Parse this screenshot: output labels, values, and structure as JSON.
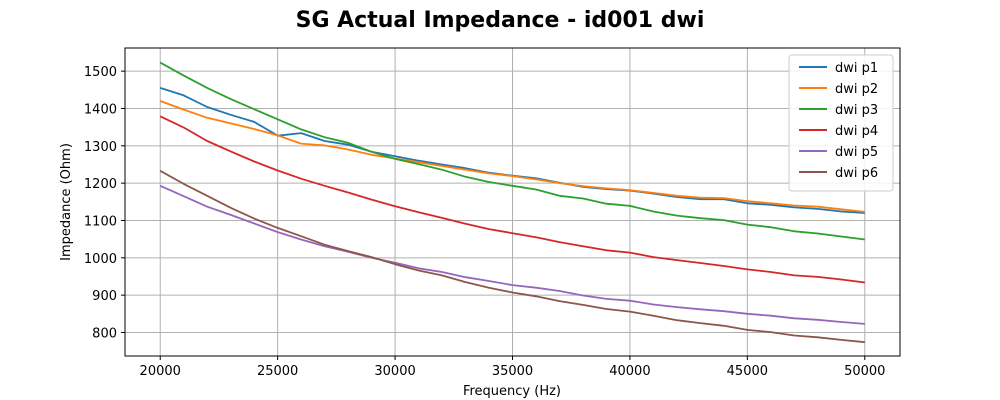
{
  "chart_data": {
    "type": "line",
    "title": "SG Actual Impedance - id001 dwi",
    "xlabel": "Frequency (Hz)",
    "ylabel": "Impedance (Ohm)",
    "xlim": [
      18500,
      51500
    ],
    "ylim": [
      737,
      1562
    ],
    "xticks": [
      20000,
      25000,
      30000,
      35000,
      40000,
      45000,
      50000
    ],
    "yticks": [
      800,
      900,
      1000,
      1100,
      1200,
      1300,
      1400,
      1500
    ],
    "grid": true,
    "legend_position": "top-right",
    "x": [
      20000,
      21000,
      22000,
      23000,
      24000,
      25000,
      26000,
      27000,
      28000,
      29000,
      30000,
      31000,
      32000,
      33000,
      34000,
      35000,
      36000,
      37000,
      38000,
      39000,
      40000,
      41000,
      42000,
      43000,
      44000,
      45000,
      46000,
      47000,
      48000,
      49000,
      50000
    ],
    "series": [
      {
        "name": "dwi p1",
        "color": "#1f77b4",
        "values": [
          1455,
          1435,
          1404,
          1383,
          1364,
          1327,
          1334,
          1313,
          1303,
          1284,
          1272,
          1260,
          1250,
          1240,
          1228,
          1220,
          1213,
          1201,
          1190,
          1184,
          1180,
          1172,
          1163,
          1157,
          1157,
          1146,
          1142,
          1135,
          1131,
          1124,
          1120
        ]
      },
      {
        "name": "dwi p2",
        "color": "#ff7f0e",
        "values": [
          1420,
          1397,
          1375,
          1360,
          1345,
          1328,
          1306,
          1301,
          1290,
          1276,
          1266,
          1256,
          1246,
          1236,
          1226,
          1219,
          1210,
          1200,
          1192,
          1186,
          1181,
          1174,
          1166,
          1161,
          1160,
          1152,
          1146,
          1140,
          1137,
          1130,
          1123
        ]
      },
      {
        "name": "dwi p3",
        "color": "#2ca02c",
        "values": [
          1523,
          1488,
          1455,
          1425,
          1398,
          1371,
          1344,
          1323,
          1308,
          1284,
          1265,
          1251,
          1236,
          1217,
          1203,
          1193,
          1183,
          1166,
          1159,
          1145,
          1139,
          1124,
          1113,
          1106,
          1101,
          1089,
          1082,
          1071,
          1065,
          1057,
          1049
        ]
      },
      {
        "name": "dwi p4",
        "color": "#d62728",
        "values": [
          1379,
          1349,
          1313,
          1285,
          1258,
          1234,
          1212,
          1193,
          1175,
          1156,
          1138,
          1122,
          1107,
          1091,
          1077,
          1066,
          1055,
          1042,
          1031,
          1020,
          1014,
          1002,
          994,
          986,
          978,
          969,
          962,
          953,
          949,
          942,
          934
        ]
      },
      {
        "name": "dwi p5",
        "color": "#9467bd",
        "values": [
          1193,
          1165,
          1137,
          1115,
          1092,
          1069,
          1049,
          1031,
          1016,
          1000,
          987,
          972,
          962,
          948,
          938,
          927,
          920,
          911,
          899,
          890,
          885,
          875,
          868,
          862,
          857,
          850,
          845,
          838,
          834,
          828,
          823
        ]
      },
      {
        "name": "dwi p6",
        "color": "#8c564b",
        "values": [
          1233,
          1198,
          1166,
          1134,
          1105,
          1080,
          1058,
          1035,
          1018,
          1002,
          983,
          966,
          953,
          935,
          920,
          907,
          897,
          884,
          874,
          863,
          856,
          845,
          833,
          825,
          818,
          807,
          801,
          792,
          787,
          780,
          774
        ]
      }
    ]
  }
}
